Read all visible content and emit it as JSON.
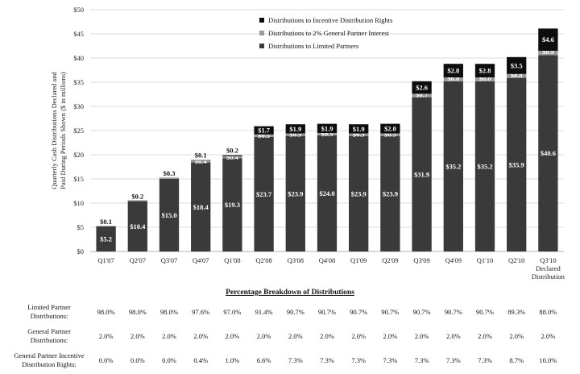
{
  "chart_data": {
    "type": "bar",
    "stacked": true,
    "categories": [
      "Q1'07",
      "Q2'07",
      "Q3'07",
      "Q4'07",
      "Q1'08",
      "Q2'08",
      "Q3'08",
      "Q4'08",
      "Q1'09",
      "Q2'09",
      "Q3'09",
      "Q4'09",
      "Q1'10",
      "Q2'10",
      "Q3'10 Declared Distribution"
    ],
    "ylabel": "Quarterly Cash Distributions Declared and Paid During Periods Shown ($ in millions)",
    "ylim": [
      0,
      50
    ],
    "yticks": [
      "$0",
      "$5",
      "$10",
      "$15",
      "$20",
      "$25",
      "$30",
      "$35",
      "$40",
      "$45",
      "$50"
    ],
    "grid": true,
    "legend_position": "top-right",
    "series": [
      {
        "name": "Distributions to Limited Partners",
        "color": "#3a3a3a",
        "values": [
          5.2,
          10.4,
          15.0,
          18.4,
          19.3,
          23.7,
          23.9,
          24.0,
          23.9,
          23.9,
          31.9,
          35.2,
          35.2,
          35.9,
          40.6
        ],
        "labels": [
          "$5.2",
          "$10.4",
          "$15.0",
          "$18.4",
          "$19.3",
          "$23.7",
          "$23.9",
          "$24.0",
          "$23.9",
          "$23.9",
          "$31.9",
          "$35.2",
          "$35.2",
          "$35.9",
          "$40.6"
        ]
      },
      {
        "name": "Distributions to 2% General Partner Interest",
        "color": "#9a9a9a",
        "values": [
          0.1,
          0.2,
          0.3,
          0.4,
          0.4,
          0.5,
          0.5,
          0.5,
          0.5,
          0.5,
          0.7,
          0.8,
          0.8,
          0.8,
          0.9
        ],
        "labels": [
          "$0.1",
          "$0.2",
          "$0.3",
          "$0.4",
          "$0.4",
          "$0.5",
          "$0.5",
          "$0.5",
          "$0.5",
          "$0.5",
          "$0.7",
          "$0.8",
          "$0.8",
          "$0.8",
          "$0.9"
        ]
      },
      {
        "name": "Distributions to Incentive Distribution Rights",
        "color": "#0d0d0d",
        "values": [
          0,
          0,
          0,
          0.1,
          0.2,
          1.7,
          1.9,
          1.9,
          1.9,
          2.0,
          2.6,
          2.8,
          2.8,
          3.5,
          4.6
        ],
        "labels": [
          "",
          "",
          "",
          "$0.1",
          "$0.2",
          "$1.7",
          "$1.9",
          "$1.9",
          "$1.9",
          "$2.0",
          "$2.6",
          "$2.8",
          "$2.8",
          "$3.5",
          "$4.6"
        ]
      }
    ],
    "legend_order": [
      "Distributions to Incentive Distribution Rights",
      "Distributions to 2% General Partner Interest",
      "Distributions to Limited Partners"
    ]
  },
  "breakdown": {
    "title": "Percentage Breakdown of Distributions",
    "rows": [
      {
        "label_lines": [
          "Limited Partner",
          "Distributions:"
        ],
        "values": [
          "98.0%",
          "98.0%",
          "98.0%",
          "97.6%",
          "97.0%",
          "91.4%",
          "90.7%",
          "90.7%",
          "90.7%",
          "90.7%",
          "90.7%",
          "90.7%",
          "90.7%",
          "89.3%",
          "88.0%"
        ]
      },
      {
        "label_lines": [
          "General Partner",
          "Distributions:"
        ],
        "values": [
          "2.0%",
          "2.0%",
          "2.0%",
          "2.0%",
          "2.0%",
          "2.0%",
          "2.0%",
          "2.0%",
          "2.0%",
          "2.0%",
          "2.0%",
          "2.0%",
          "2.0%",
          "2.0%",
          "2.0%"
        ]
      },
      {
        "label_lines": [
          "General Partner Incentive",
          "Distribution Rights:"
        ],
        "values": [
          "0.0%",
          "0.0%",
          "0.0%",
          "0.4%",
          "1.0%",
          "6.6%",
          "7.3%",
          "7.3%",
          "7.3%",
          "7.3%",
          "7.3%",
          "7.3%",
          "7.3%",
          "8.7%",
          "10.0%"
        ]
      }
    ]
  }
}
